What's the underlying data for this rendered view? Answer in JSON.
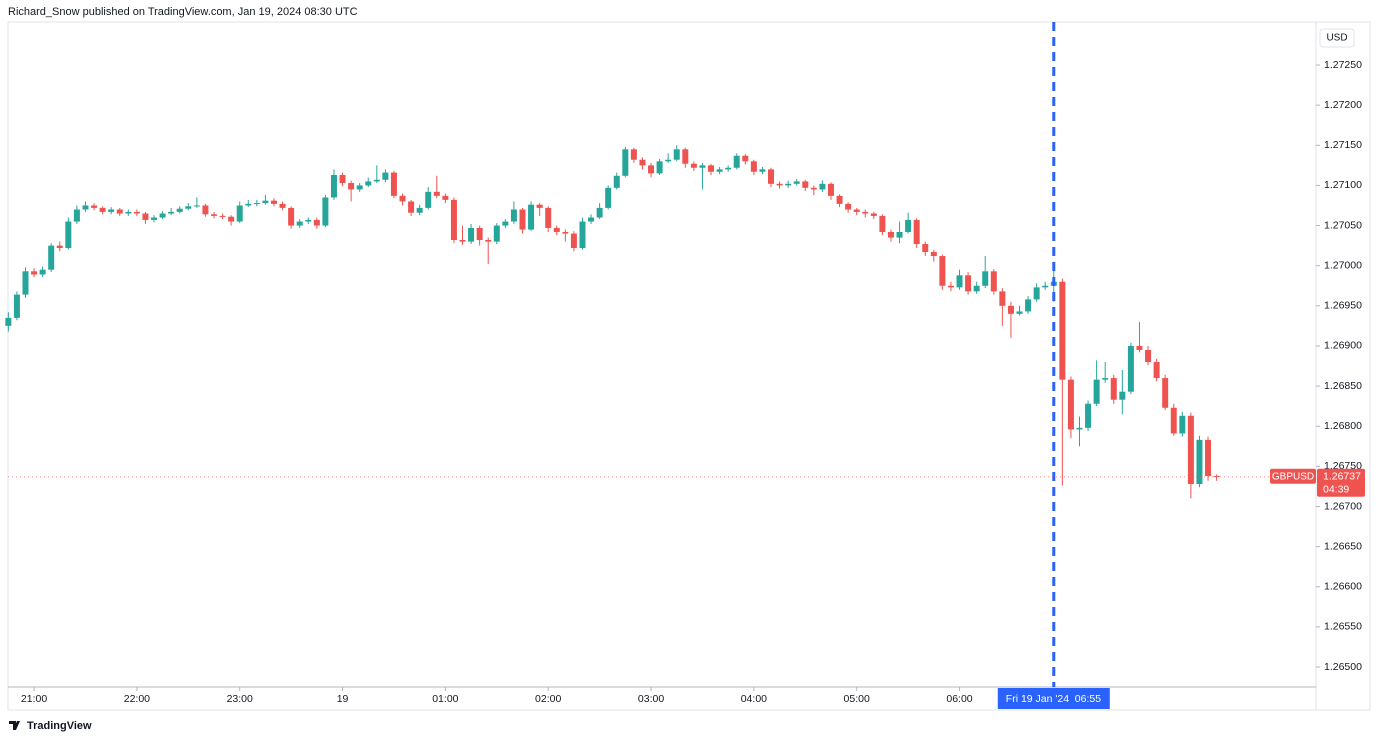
{
  "header": "Richard_Snow published on TradingView.com, Jan 19, 2024 08:30 UTC",
  "footer": "TradingView",
  "chart_data": {
    "type": "candlestick",
    "currency": "USD",
    "up_color": "#26a69a",
    "down_color": "#ef5350",
    "grid": false,
    "xlim": [
      -15.2,
      748
    ],
    "ylim": [
      1.264751,
      1.273036
    ],
    "xticks": [
      {
        "value": 0,
        "label": "21:00"
      },
      {
        "value": 60,
        "label": "22:00"
      },
      {
        "value": 120,
        "label": "23:00"
      },
      {
        "value": 180,
        "label": "19"
      },
      {
        "value": 240,
        "label": "01:00"
      },
      {
        "value": 300,
        "label": "02:00"
      },
      {
        "value": 360,
        "label": "03:00"
      },
      {
        "value": 420,
        "label": "04:00"
      },
      {
        "value": 480,
        "label": "05:00"
      },
      {
        "value": 540,
        "label": "06:00"
      }
    ],
    "yticks": [
      {
        "value": 1.2725,
        "label": "1.27250"
      },
      {
        "value": 1.272,
        "label": "1.27200"
      },
      {
        "value": 1.2715,
        "label": "1.27150"
      },
      {
        "value": 1.271,
        "label": "1.27100"
      },
      {
        "value": 1.2705,
        "label": "1.27050"
      },
      {
        "value": 1.27,
        "label": "1.27000"
      },
      {
        "value": 1.2695,
        "label": "1.26950"
      },
      {
        "value": 1.269,
        "label": "1.26900"
      },
      {
        "value": 1.2685,
        "label": "1.26850"
      },
      {
        "value": 1.268,
        "label": "1.26800"
      },
      {
        "value": 1.2675,
        "label": "1.26750"
      },
      {
        "value": 1.267,
        "label": "1.26700"
      },
      {
        "value": 1.2665,
        "label": "1.26650"
      },
      {
        "value": 1.266,
        "label": "1.26600"
      },
      {
        "value": 1.2655,
        "label": "1.26550"
      },
      {
        "value": 1.265,
        "label": "1.26500"
      }
    ],
    "crosshair": {
      "x": 595,
      "date": "Fri 19 Jan '24",
      "time": "06:55",
      "color": "#2962ff"
    },
    "last_price": {
      "symbol": "GBPUSD",
      "value": 1.26737,
      "countdown": "04:39"
    },
    "x": [
      -15,
      -10,
      -5,
      0,
      5,
      10,
      15,
      20,
      25,
      30,
      35,
      40,
      45,
      50,
      55,
      60,
      65,
      70,
      75,
      80,
      85,
      90,
      95,
      100,
      105,
      110,
      115,
      120,
      125,
      130,
      135,
      140,
      145,
      150,
      155,
      160,
      165,
      170,
      175,
      180,
      185,
      190,
      195,
      200,
      205,
      210,
      215,
      220,
      225,
      230,
      235,
      240,
      245,
      250,
      255,
      260,
      265,
      270,
      275,
      280,
      285,
      290,
      295,
      300,
      305,
      310,
      315,
      320,
      325,
      330,
      335,
      340,
      345,
      350,
      355,
      360,
      365,
      370,
      375,
      380,
      385,
      390,
      395,
      400,
      405,
      410,
      415,
      420,
      425,
      430,
      435,
      440,
      445,
      450,
      455,
      460,
      465,
      470,
      475,
      480,
      485,
      490,
      495,
      500,
      505,
      510,
      515,
      520,
      525,
      530,
      535,
      540,
      545,
      550,
      555,
      560,
      565,
      570,
      575,
      580,
      585,
      590,
      595,
      600,
      605,
      610,
      615,
      620,
      625,
      630,
      635,
      640,
      645,
      650,
      655,
      660,
      665,
      670,
      675,
      680,
      685,
      690
    ],
    "open": [
      1.26925,
      1.26935,
      1.26964,
      1.26993,
      1.26989,
      1.26995,
      1.27025,
      1.27022,
      1.27055,
      1.2707,
      1.27075,
      1.27072,
      1.27067,
      1.2707,
      1.27065,
      1.27067,
      1.27065,
      1.27057,
      1.2706,
      1.27065,
      1.27067,
      1.27071,
      1.27074,
      1.27075,
      1.27064,
      1.27062,
      1.27061,
      1.27055,
      1.27075,
      1.27077,
      1.27078,
      1.27081,
      1.27077,
      1.27072,
      1.2705,
      1.27055,
      1.27057,
      1.2705,
      1.27085,
      1.27113,
      1.27103,
      1.27095,
      1.271,
      1.27105,
      1.27107,
      1.27116,
      1.27087,
      1.2708,
      1.27066,
      1.27072,
      1.27092,
      1.27087,
      1.27082,
      1.27032,
      1.2703,
      1.27047,
      1.27032,
      1.2703,
      1.2705,
      1.27055,
      1.2707,
      1.27045,
      1.27076,
      1.27072,
      1.27047,
      1.27042,
      1.2704,
      1.27022,
      1.27055,
      1.2706,
      1.27072,
      1.27097,
      1.27112,
      1.27145,
      1.27132,
      1.27125,
      1.27115,
      1.2713,
      1.27132,
      1.27145,
      1.27127,
      1.27122,
      1.27125,
      1.27117,
      1.2712,
      1.27122,
      1.27137,
      1.2713,
      1.27117,
      1.2712,
      1.27102,
      1.271,
      1.27102,
      1.27105,
      1.27097,
      1.27095,
      1.27102,
      1.27087,
      1.27077,
      1.2707,
      1.27067,
      1.27065,
      1.27062,
      1.27042,
      1.27035,
      1.27042,
      1.27057,
      1.27027,
      1.27017,
      1.27012,
      1.26975,
      1.26973,
      1.26988,
      1.26968,
      1.26975,
      1.26993,
      1.26968,
      1.2695,
      1.2694,
      1.26943,
      1.26958,
      1.26973,
      1.26975,
      1.2698,
      1.26858,
      1.26796,
      1.26798,
      1.26828,
      1.26858,
      1.2686,
      1.26833,
      1.26843,
      1.269,
      1.26895,
      1.2688,
      1.2686,
      1.26823,
      1.26791,
      1.26813,
      1.26728,
      1.26783,
      1.26738
    ],
    "high": [
      1.26942,
      1.26968,
      1.26998,
      1.26997,
      1.26999,
      1.27028,
      1.2703,
      1.2706,
      1.27075,
      1.2708,
      1.27078,
      1.27074,
      1.27073,
      1.27072,
      1.2707,
      1.2707,
      1.27067,
      1.27063,
      1.27068,
      1.27072,
      1.27074,
      1.27078,
      1.27085,
      1.27077,
      1.27067,
      1.27065,
      1.27063,
      1.2708,
      1.27082,
      1.27082,
      1.27088,
      1.27084,
      1.2708,
      1.27074,
      1.27058,
      1.2706,
      1.2706,
      1.27088,
      1.2712,
      1.27116,
      1.27106,
      1.27103,
      1.2711,
      1.27125,
      1.2712,
      1.27118,
      1.2709,
      1.27082,
      1.27076,
      1.27098,
      1.27112,
      1.2709,
      1.27085,
      1.2705,
      1.27052,
      1.2705,
      1.27035,
      1.27053,
      1.27058,
      1.2708,
      1.27072,
      1.2708,
      1.27078,
      1.27074,
      1.2705,
      1.27045,
      1.27043,
      1.2706,
      1.27064,
      1.27078,
      1.271,
      1.27116,
      1.27148,
      1.27147,
      1.27135,
      1.27128,
      1.27133,
      1.2714,
      1.2715,
      1.27147,
      1.2713,
      1.27128,
      1.27127,
      1.27123,
      1.27125,
      1.2714,
      1.27139,
      1.27132,
      1.27123,
      1.27122,
      1.27105,
      1.27106,
      1.27108,
      1.27107,
      1.271,
      1.27106,
      1.27104,
      1.27089,
      1.27079,
      1.27072,
      1.2707,
      1.27067,
      1.27064,
      1.27045,
      1.27055,
      1.27066,
      1.27059,
      1.2703,
      1.2702,
      1.27014,
      1.2698,
      1.26995,
      1.26992,
      1.2698,
      1.27012,
      1.26996,
      1.26972,
      1.26955,
      1.2695,
      1.26962,
      1.26978,
      1.2698,
      1.27005,
      1.26984,
      1.26862,
      1.26812,
      1.26832,
      1.26882,
      1.2688,
      1.26864,
      1.2687,
      1.26904,
      1.2693,
      1.269,
      1.26884,
      1.26864,
      1.26828,
      1.26818,
      1.26817,
      1.26788,
      1.26787,
      1.2674
    ],
    "low": [
      1.26918,
      1.26932,
      1.2696,
      1.26986,
      1.26986,
      1.26992,
      1.27018,
      1.2702,
      1.27052,
      1.27067,
      1.27069,
      1.27064,
      1.27064,
      1.27062,
      1.27062,
      1.27062,
      1.27052,
      1.27054,
      1.27058,
      1.27063,
      1.27065,
      1.27069,
      1.27072,
      1.27061,
      1.27059,
      1.27058,
      1.2705,
      1.27053,
      1.27073,
      1.27074,
      1.27076,
      1.27074,
      1.27069,
      1.27046,
      1.27047,
      1.27052,
      1.27046,
      1.27048,
      1.27082,
      1.27099,
      1.2708,
      1.27092,
      1.27098,
      1.27103,
      1.27104,
      1.27084,
      1.27075,
      1.27062,
      1.27063,
      1.2707,
      1.27084,
      1.27078,
      1.27028,
      1.27026,
      1.27027,
      1.27025,
      1.27002,
      1.27027,
      1.27047,
      1.27052,
      1.2704,
      1.27043,
      1.27062,
      1.27042,
      1.27038,
      1.2703,
      1.27018,
      1.2702,
      1.27052,
      1.27058,
      1.2707,
      1.27095,
      1.2711,
      1.27128,
      1.2712,
      1.2711,
      1.27113,
      1.27128,
      1.2713,
      1.27122,
      1.27118,
      1.27095,
      1.27113,
      1.27114,
      1.27117,
      1.2712,
      1.27126,
      1.27113,
      1.27114,
      1.27098,
      1.27096,
      1.27097,
      1.271,
      1.27093,
      1.27088,
      1.27092,
      1.27082,
      1.27073,
      1.27066,
      1.27063,
      1.2706,
      1.27058,
      1.27038,
      1.2703,
      1.27028,
      1.2704,
      1.27022,
      1.27012,
      1.27005,
      1.2697,
      1.26968,
      1.2697,
      1.26964,
      1.26965,
      1.26972,
      1.26964,
      1.26925,
      1.2691,
      1.26938,
      1.2694,
      1.26955,
      1.2697,
      1.26955,
      1.26726,
      1.26785,
      1.26775,
      1.26794,
      1.26825,
      1.26854,
      1.26828,
      1.26815,
      1.2684,
      1.26892,
      1.26876,
      1.26856,
      1.2682,
      1.26788,
      1.26787,
      1.2671,
      1.26724,
      1.26732,
      1.26732
    ],
    "close": [
      1.26935,
      1.26964,
      1.26993,
      1.26989,
      1.26995,
      1.27025,
      1.27022,
      1.27055,
      1.2707,
      1.27075,
      1.27072,
      1.27067,
      1.2707,
      1.27065,
      1.27067,
      1.27065,
      1.27057,
      1.2706,
      1.27065,
      1.27067,
      1.27071,
      1.27074,
      1.27075,
      1.27064,
      1.27062,
      1.27061,
      1.27055,
      1.27075,
      1.27077,
      1.27078,
      1.27081,
      1.27077,
      1.27072,
      1.2705,
      1.27055,
      1.27057,
      1.2705,
      1.27085,
      1.27113,
      1.27103,
      1.27095,
      1.271,
      1.27105,
      1.27107,
      1.27116,
      1.27087,
      1.2708,
      1.27066,
      1.27072,
      1.27092,
      1.27087,
      1.27082,
      1.27032,
      1.2703,
      1.27047,
      1.27032,
      1.2703,
      1.2705,
      1.27055,
      1.2707,
      1.27045,
      1.27076,
      1.27072,
      1.27047,
      1.27042,
      1.2704,
      1.27022,
      1.27055,
      1.2706,
      1.27072,
      1.27097,
      1.27112,
      1.27145,
      1.27132,
      1.27125,
      1.27115,
      1.2713,
      1.27132,
      1.27145,
      1.27127,
      1.27122,
      1.27125,
      1.27117,
      1.2712,
      1.27122,
      1.27137,
      1.2713,
      1.27117,
      1.2712,
      1.27102,
      1.271,
      1.27102,
      1.27105,
      1.27097,
      1.27095,
      1.27102,
      1.27087,
      1.27077,
      1.2707,
      1.27067,
      1.27065,
      1.27062,
      1.27042,
      1.27035,
      1.27042,
      1.27057,
      1.27027,
      1.27017,
      1.27012,
      1.26975,
      1.26973,
      1.26988,
      1.26968,
      1.26975,
      1.26993,
      1.26968,
      1.2695,
      1.2694,
      1.26943,
      1.26958,
      1.26973,
      1.26975,
      1.2698,
      1.26858,
      1.26796,
      1.26798,
      1.26828,
      1.26858,
      1.2686,
      1.26833,
      1.26843,
      1.269,
      1.26895,
      1.2688,
      1.2686,
      1.26823,
      1.26791,
      1.26813,
      1.26728,
      1.26783,
      1.26738,
      1.26737
    ]
  }
}
